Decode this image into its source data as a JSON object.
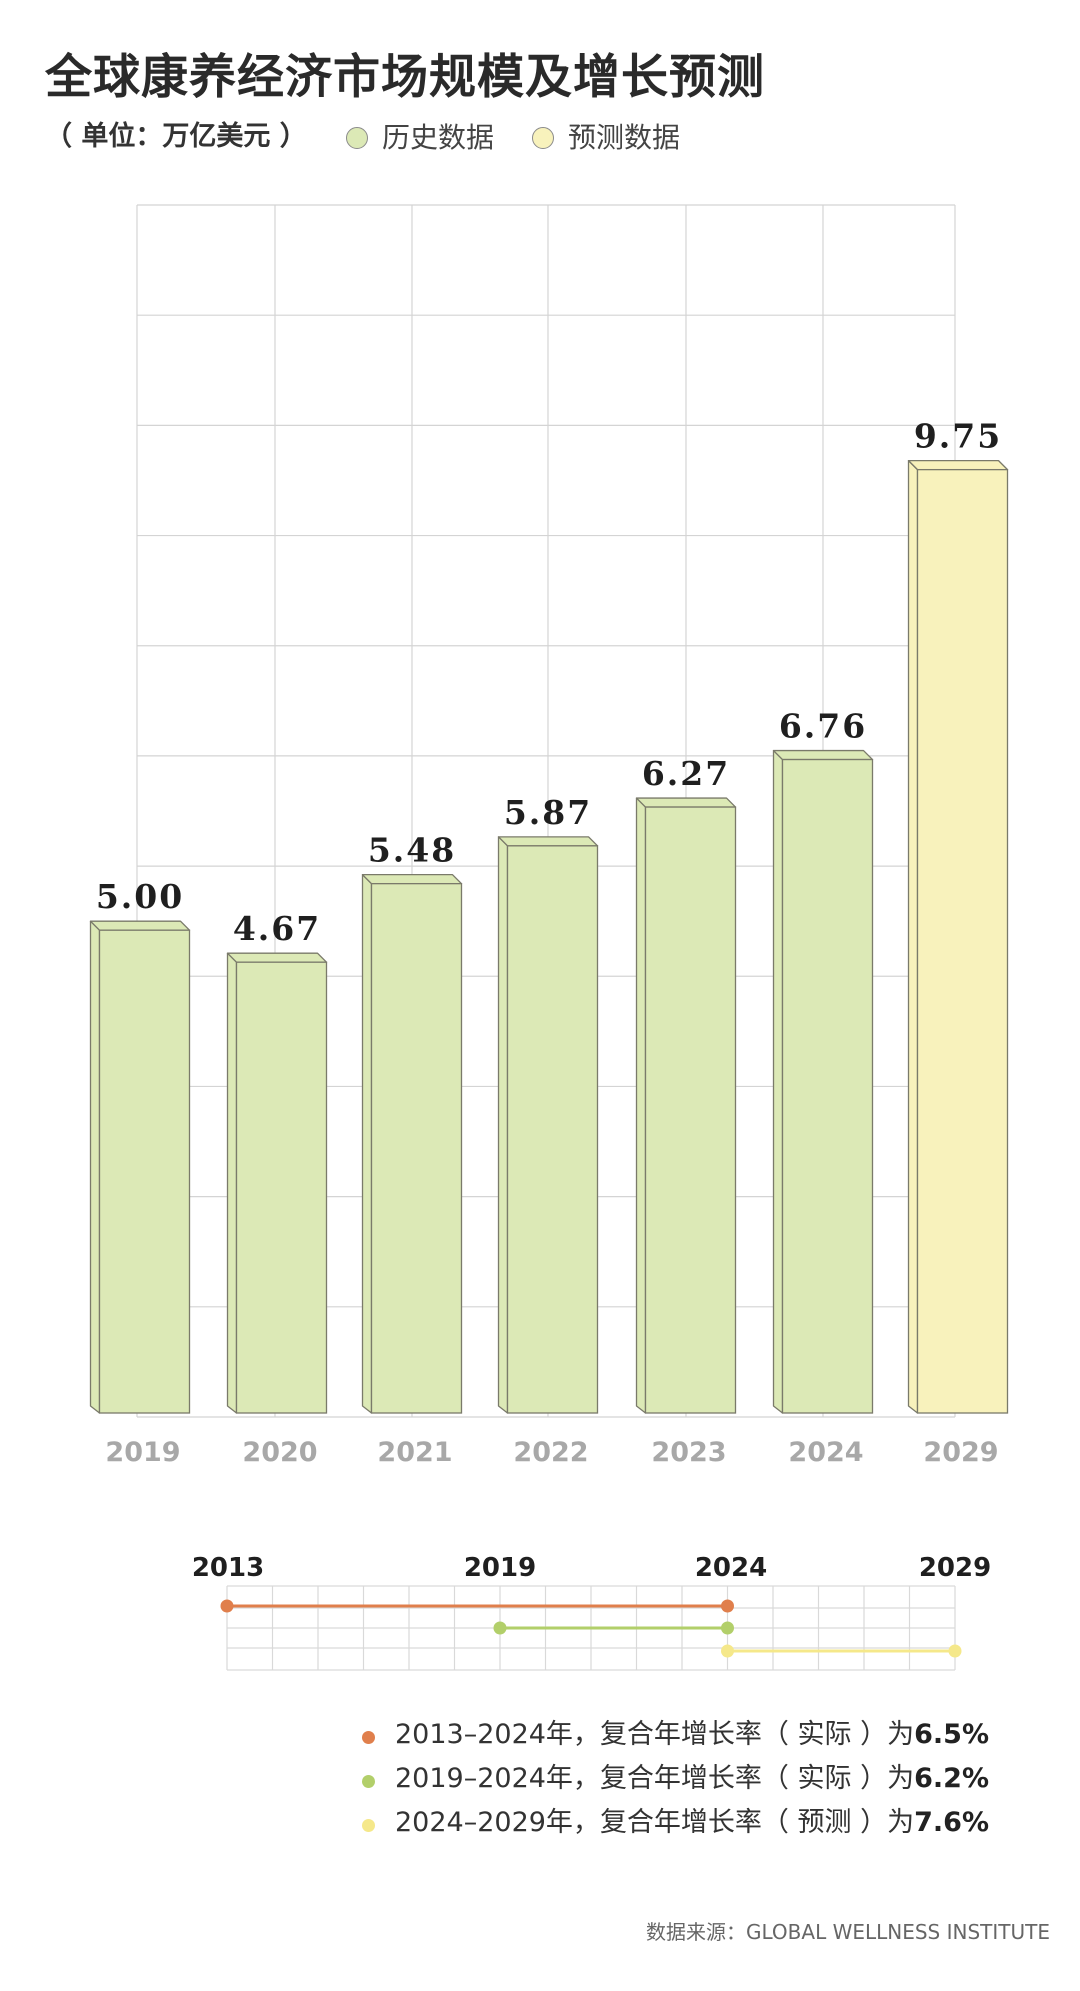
{
  "title": "全球康养经济市场规模及增长预测",
  "unit": "（ 单位：万亿美元 ）",
  "legend": {
    "historical": "历史数据",
    "forecast": "预测数据"
  },
  "colors": {
    "historical": "#dce9b6",
    "forecast": "#f8f2bc",
    "cagr_2013_2024": "#e07f4c",
    "cagr_2019_2024": "#b2cf6a",
    "cagr_2024_2029": "#f5e88a"
  },
  "chart_data": {
    "type": "bar",
    "title": "全球康养经济市场规模及增长预测",
    "xlabel": "",
    "ylabel": "",
    "ylim": [
      0,
      12.5
    ],
    "grid": true,
    "legend_position": "top-left",
    "categories": [
      "2019",
      "2020",
      "2021",
      "2022",
      "2023",
      "2024",
      "2029"
    ],
    "series": [
      {
        "name": "历史数据",
        "values": [
          5.0,
          4.67,
          5.48,
          5.87,
          6.27,
          6.76,
          null
        ]
      },
      {
        "name": "预测数据",
        "values": [
          null,
          null,
          null,
          null,
          null,
          null,
          9.75
        ]
      }
    ],
    "value_labels": [
      "5.00",
      "4.67",
      "5.48",
      "5.87",
      "6.27",
      "6.76",
      "9.75"
    ]
  },
  "timeline": {
    "years": [
      "2013",
      "2019",
      "2024",
      "2029"
    ],
    "ranges": [
      {
        "from": 2013,
        "to": 2024
      },
      {
        "from": 2019,
        "to": 2024
      },
      {
        "from": 2024,
        "to": 2029
      }
    ]
  },
  "cagr": [
    {
      "period": "2013–2024年，",
      "text": "复合年增长率（ 实际 ）为",
      "value": "6.5%"
    },
    {
      "period": "2019–2024年，",
      "text": "复合年增长率（ 实际 ）为",
      "value": "6.2%"
    },
    {
      "period": "2024–2029年，",
      "text": "复合年增长率（ 预测 ）为",
      "value": "7.6%"
    }
  ],
  "source": "数据来源：GLOBAL WELLNESS INSTITUTE"
}
